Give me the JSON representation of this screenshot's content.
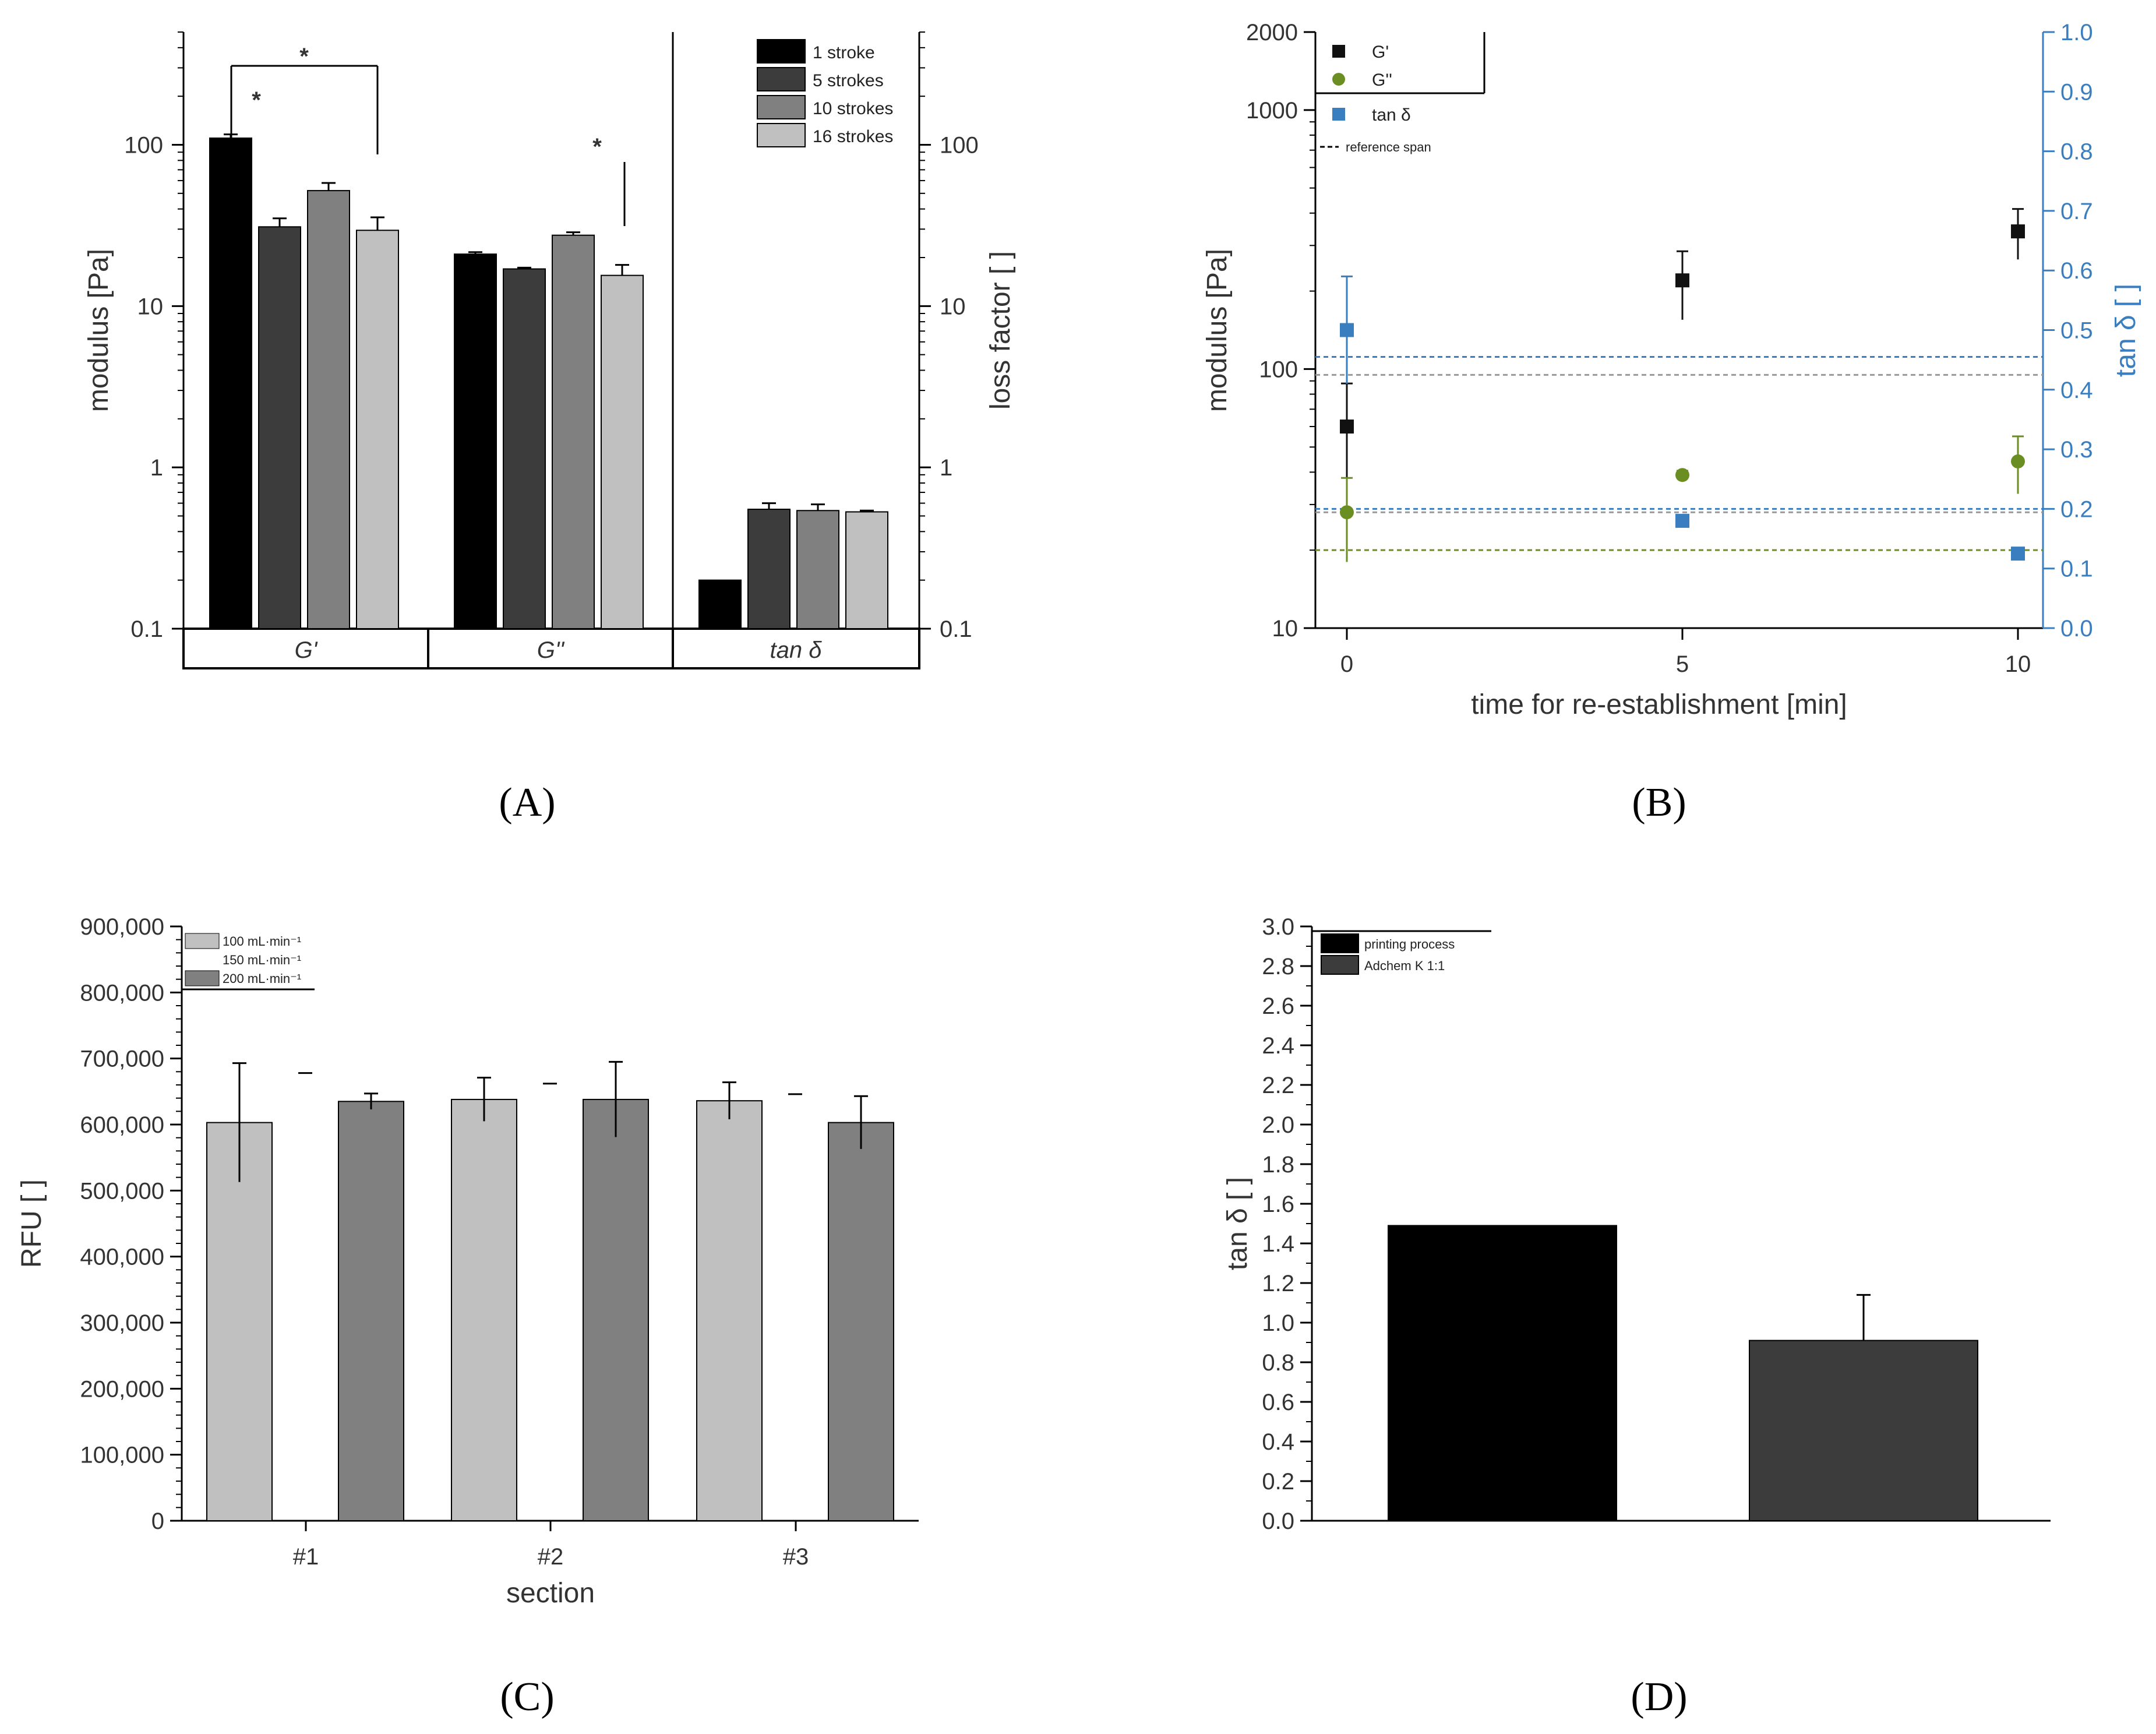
{
  "panels": [
    {
      "label": "(A)"
    },
    {
      "label": "(B)"
    },
    {
      "label": "(C)"
    },
    {
      "label": "(D)"
    }
  ],
  "chart_data": [
    {
      "type": "bar",
      "panel": "A",
      "scale": "log",
      "ylabel": "modulus [Pa]",
      "y2label": "loss factor [ ]",
      "ylim": [
        0.1,
        500
      ],
      "yticks": [
        "0.1",
        "1",
        "10",
        "100"
      ],
      "groups": [
        "G'",
        "G''",
        "tan δ"
      ],
      "series": [
        {
          "name": "1 stroke",
          "color": "#000000",
          "values": [
            110,
            21,
            0.2
          ],
          "errors": [
            6,
            0.6,
            0
          ]
        },
        {
          "name": "5 strokes",
          "color": "#3c3c3c",
          "values": [
            31,
            17,
            0.55
          ],
          "errors": [
            4,
            0.3,
            0.05
          ]
        },
        {
          "name": "10 strokes",
          "color": "#808080",
          "values": [
            52,
            27.5,
            0.54
          ],
          "errors": [
            6,
            1.2,
            0.05
          ]
        },
        {
          "name": "16 strokes",
          "color": "#c0c0c0",
          "values": [
            29.5,
            15.5,
            0.53
          ],
          "errors": [
            6,
            2.5,
            0.01
          ]
        }
      ],
      "significance_marker": "*"
    },
    {
      "type": "scatter",
      "panel": "B",
      "xlabel": "time for re-establishment [min]",
      "ylabel": "modulus [Pa]",
      "y2label": "tan δ [ ]",
      "xticks": [
        "0",
        "5",
        "10"
      ],
      "yticks": [
        "10",
        "100",
        "1000",
        "2000"
      ],
      "y2ticks": [
        "0.0",
        "0.1",
        "0.2",
        "0.3",
        "0.4",
        "0.5",
        "0.6",
        "0.7",
        "0.8",
        "0.9",
        "1.0"
      ],
      "x": [
        0,
        5,
        10
      ],
      "series": [
        {
          "name": "G'",
          "marker": "square",
          "color": "#111111",
          "axis": "left",
          "values": [
            60,
            220,
            340
          ],
          "errors": [
            28,
            65,
            75
          ]
        },
        {
          "name": "G''",
          "marker": "circle",
          "color": "#6b8e23",
          "axis": "left",
          "values": [
            28,
            39,
            44
          ],
          "errors": [
            10,
            1.5,
            11
          ]
        },
        {
          "name": "tan δ",
          "marker": "square",
          "color": "#3a7ebf",
          "axis": "right",
          "values": [
            0.5,
            0.18,
            0.125
          ],
          "errors": [
            0.09,
            0.01,
            0.005
          ]
        }
      ],
      "reference_lines": [
        {
          "axis": "right",
          "value": 0.455,
          "color": "#3a7ebf"
        },
        {
          "axis": "left",
          "value": 95,
          "color": "#999999"
        },
        {
          "axis": "right",
          "value": 0.2,
          "color": "#3a7ebf"
        },
        {
          "axis": "left",
          "value": 28,
          "color": "#999999"
        },
        {
          "axis": "left",
          "value": 20,
          "color": "#6b8e23"
        }
      ],
      "legend_extra": "reference span"
    },
    {
      "type": "bar",
      "panel": "C",
      "xlabel": "section",
      "ylabel": "RFU [ ]",
      "ylim": [
        0,
        900000
      ],
      "yticks": [
        "0",
        "100,000",
        "200,000",
        "300,000",
        "400,000",
        "500,000",
        "600,000",
        "700,000",
        "800,000",
        "900,000"
      ],
      "categories": [
        "#1",
        "#2",
        "#3"
      ],
      "series": [
        {
          "name": "100 mL·min⁻¹",
          "color": "#c0c0c0",
          "values": [
            603000,
            638000,
            636000
          ],
          "errors": [
            90000,
            33000,
            28000
          ]
        },
        {
          "name": "150 mL·min⁻¹",
          "color": "#ffffff",
          "values": [
            678000,
            662000,
            646000
          ],
          "errors": [
            0,
            0,
            0
          ]
        },
        {
          "name": "200 mL·min⁻¹",
          "color": "#808080",
          "values": [
            635000,
            638000,
            603000
          ],
          "errors": [
            12000,
            57000,
            40000
          ]
        }
      ]
    },
    {
      "type": "bar",
      "panel": "D",
      "ylabel": "tan δ [ ]",
      "ylim": [
        0,
        3.0
      ],
      "yticks": [
        "0.0",
        "0.2",
        "0.4",
        "0.6",
        "0.8",
        "1.0",
        "1.2",
        "1.4",
        "1.6",
        "1.8",
        "2.0",
        "2.2",
        "2.4",
        "2.6",
        "2.8",
        "3.0"
      ],
      "categories": [
        "printing process",
        "Adchem K 1:1"
      ],
      "series": [
        {
          "name": "printing process",
          "color": "#000000",
          "values": [
            1.49,
            0
          ],
          "errors": [
            0,
            0
          ]
        },
        {
          "name": "Adchem K 1:1",
          "color": "#3c3c3c",
          "values": [
            0,
            0.91
          ],
          "errors": [
            0,
            0.23
          ]
        }
      ]
    }
  ]
}
